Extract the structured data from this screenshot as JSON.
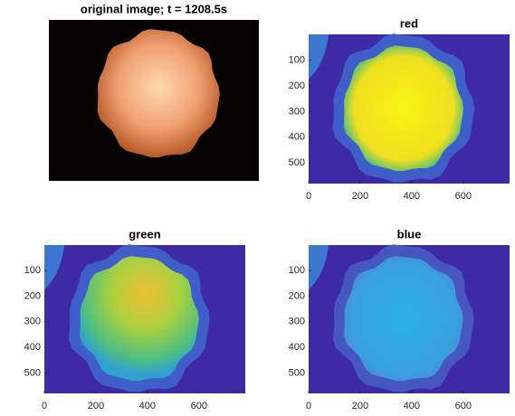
{
  "chart_data": [
    {
      "type": "image",
      "title": "original image; t = 1208.5s"
    },
    {
      "type": "image",
      "title": "red",
      "xlim": [
        0,
        780
      ],
      "ylim": [
        0,
        580
      ],
      "xticks": [
        0,
        200,
        400,
        600
      ],
      "yticks": [
        100,
        200,
        300,
        400,
        500
      ]
    },
    {
      "type": "image",
      "title": "green",
      "xlim": [
        0,
        780
      ],
      "ylim": [
        0,
        580
      ],
      "xticks": [
        0,
        200,
        400,
        600
      ],
      "yticks": [
        100,
        200,
        300,
        400,
        500
      ]
    },
    {
      "type": "image",
      "title": "blue",
      "xlim": [
        0,
        780
      ],
      "ylim": [
        0,
        580
      ],
      "xticks": [
        0,
        200,
        400,
        600
      ],
      "yticks": [
        100,
        200,
        300,
        400,
        500
      ]
    }
  ]
}
